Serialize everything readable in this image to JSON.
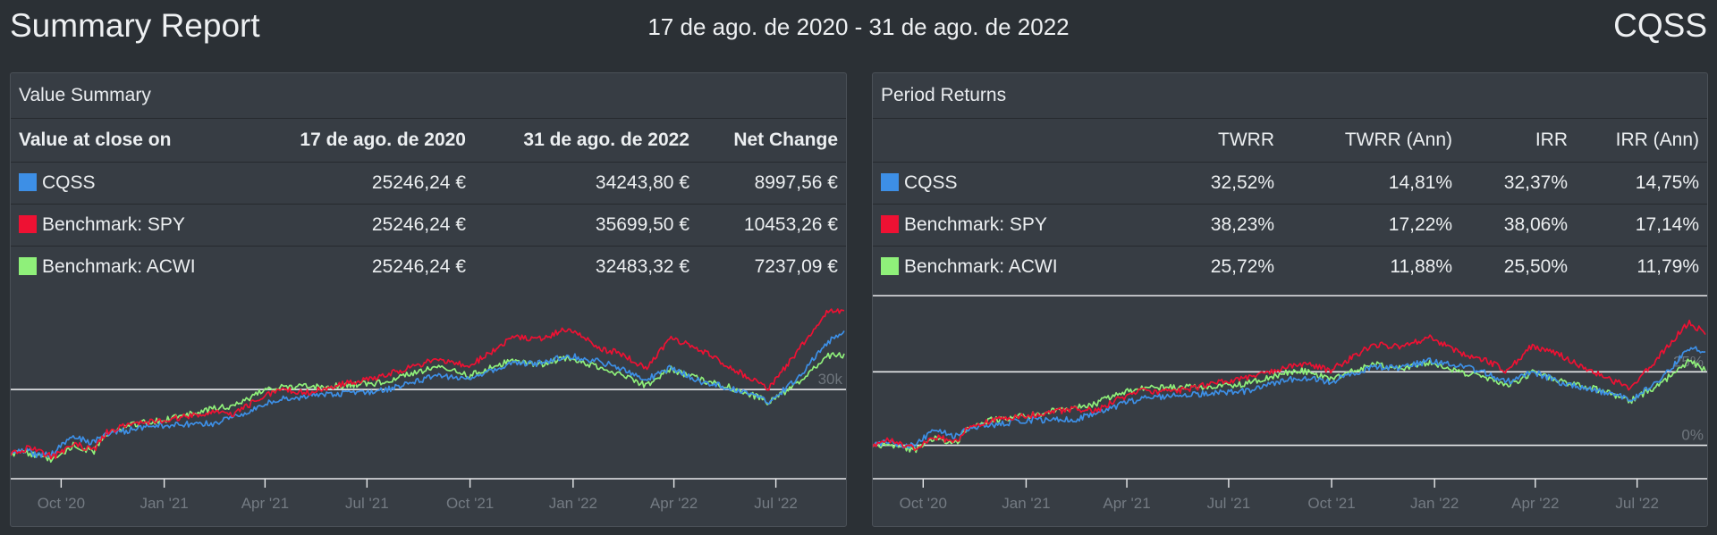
{
  "header": {
    "title": "Summary Report",
    "date_range": "17 de ago. de 2020 - 31 de ago. de 2022",
    "account": "CQSS"
  },
  "value_summary": {
    "title": "Value Summary",
    "columns": [
      "Value at close on",
      "17 de ago. de 2020",
      "31 de ago. de 2022",
      "Net Change"
    ],
    "rows": [
      {
        "name": "CQSS",
        "color": "#3d8fe6",
        "start": "25246,24 €",
        "end": "34243,80 €",
        "change": "8997,56 €"
      },
      {
        "name": "Benchmark: SPY",
        "color": "#ee1133",
        "start": "25246,24 €",
        "end": "35699,50 €",
        "change": "10453,26 €"
      },
      {
        "name": "Benchmark: ACWI",
        "color": "#8ff07a",
        "start": "25246,24 €",
        "end": "32483,32 €",
        "change": "7237,09 €"
      }
    ]
  },
  "period_returns": {
    "title": "Period Returns",
    "columns": [
      "",
      "TWRR",
      "TWRR (Ann)",
      "IRR",
      "IRR (Ann)"
    ],
    "rows": [
      {
        "name": "CQSS",
        "color": "#3d8fe6",
        "twrr": "32,52%",
        "twrr_ann": "14,81%",
        "irr": "32,37%",
        "irr_ann": "14,75%"
      },
      {
        "name": "Benchmark: SPY",
        "color": "#ee1133",
        "twrr": "38,23%",
        "twrr_ann": "17,22%",
        "irr": "38,06%",
        "irr_ann": "17,14%"
      },
      {
        "name": "Benchmark: ACWI",
        "color": "#8ff07a",
        "twrr": "25,72%",
        "twrr_ann": "11,88%",
        "irr": "25,50%",
        "irr_ann": "11,79%"
      }
    ]
  },
  "chart_data": [
    {
      "type": "line",
      "x_tick_labels": [
        "Oct '20",
        "Jan '21",
        "Apr '21",
        "Jul '21",
        "Oct '21",
        "Jan '22",
        "Apr '22",
        "Jul '22"
      ],
      "x_ticks": [
        "2020-10-01",
        "2021-01-01",
        "2021-04-01",
        "2021-07-01",
        "2021-10-01",
        "2022-01-01",
        "2022-04-01",
        "2022-07-01"
      ],
      "x_range": [
        "2020-08-17",
        "2022-08-31"
      ],
      "y_tick_labels": [
        "30k"
      ],
      "y_ticks": [
        30000
      ],
      "ylim": [
        24000,
        37000
      ],
      "grid": true,
      "series": [
        {
          "name": "CQSS",
          "color": "#3d8fe6",
          "x": [
            "2020-08-17",
            "2020-09-01",
            "2020-09-10",
            "2020-09-24",
            "2020-10-12",
            "2020-10-28",
            "2020-11-10",
            "2020-12-01",
            "2021-01-04",
            "2021-02-15",
            "2021-03-05",
            "2021-03-25",
            "2021-04-15",
            "2021-05-12",
            "2021-06-10",
            "2021-07-15",
            "2021-08-15",
            "2021-09-02",
            "2021-09-30",
            "2021-10-20",
            "2021-11-08",
            "2021-12-01",
            "2021-12-28",
            "2022-01-27",
            "2022-02-14",
            "2022-03-07",
            "2022-03-29",
            "2022-04-25",
            "2022-05-20",
            "2022-06-16",
            "2022-06-24",
            "2022-07-20",
            "2022-08-16",
            "2022-08-31"
          ],
          "y": [
            25246,
            25500,
            25100,
            25300,
            26600,
            26000,
            26700,
            27000,
            27400,
            27500,
            28000,
            28700,
            29300,
            29500,
            29700,
            29900,
            30600,
            31100,
            30700,
            31400,
            32000,
            31900,
            32500,
            32000,
            31500,
            30700,
            31600,
            30600,
            30100,
            29500,
            29000,
            30800,
            33500,
            34244
          ]
        },
        {
          "name": "Benchmark: SPY",
          "color": "#ee1133",
          "x": [
            "2020-08-17",
            "2020-09-02",
            "2020-09-24",
            "2020-10-12",
            "2020-10-30",
            "2020-11-10",
            "2020-12-01",
            "2021-01-04",
            "2021-02-15",
            "2021-03-04",
            "2021-03-25",
            "2021-04-15",
            "2021-05-12",
            "2021-06-10",
            "2021-07-15",
            "2021-08-15",
            "2021-09-02",
            "2021-09-30",
            "2021-10-20",
            "2021-11-08",
            "2021-12-01",
            "2021-12-28",
            "2022-01-27",
            "2022-02-14",
            "2022-03-07",
            "2022-03-29",
            "2022-04-25",
            "2022-05-20",
            "2022-06-16",
            "2022-06-24",
            "2022-07-20",
            "2022-08-16",
            "2022-08-31"
          ],
          "y": [
            25246,
            25700,
            25000,
            26000,
            25500,
            26800,
            27400,
            27800,
            28400,
            28200,
            29200,
            30000,
            29800,
            30400,
            31000,
            31800,
            32300,
            31700,
            32800,
            33900,
            33700,
            34500,
            33000,
            32600,
            31600,
            33800,
            32900,
            31700,
            30500,
            30000,
            32800,
            35800,
            35700
          ]
        },
        {
          "name": "Benchmark: ACWI",
          "color": "#8ff07a",
          "x": [
            "2020-08-17",
            "2020-09-02",
            "2020-09-24",
            "2020-10-12",
            "2020-10-30",
            "2020-11-10",
            "2020-12-01",
            "2021-01-04",
            "2021-02-15",
            "2021-03-04",
            "2021-03-25",
            "2021-04-15",
            "2021-05-12",
            "2021-06-10",
            "2021-07-15",
            "2021-08-15",
            "2021-09-02",
            "2021-09-30",
            "2021-10-20",
            "2021-11-08",
            "2021-12-01",
            "2021-12-28",
            "2022-01-27",
            "2022-02-14",
            "2022-03-07",
            "2022-03-29",
            "2022-04-25",
            "2022-05-20",
            "2022-06-16",
            "2022-06-24",
            "2022-07-20",
            "2022-08-16",
            "2022-08-31"
          ],
          "y": [
            25246,
            25300,
            24800,
            25900,
            25400,
            26700,
            27400,
            27800,
            28600,
            28800,
            29700,
            30200,
            30200,
            30300,
            30500,
            31300,
            31700,
            31000,
            31600,
            32200,
            31800,
            32400,
            31500,
            31000,
            30300,
            31500,
            30700,
            30200,
            29400,
            29000,
            30400,
            32500,
            32483
          ]
        }
      ]
    },
    {
      "type": "line",
      "x_tick_labels": [
        "Oct '20",
        "Jan '21",
        "Apr '21",
        "Jul '21",
        "Oct '21",
        "Jan '22",
        "Apr '22",
        "Jul '22"
      ],
      "x_ticks": [
        "2020-10-01",
        "2021-01-01",
        "2021-04-01",
        "2021-07-01",
        "2021-10-01",
        "2022-01-01",
        "2022-04-01",
        "2022-07-01"
      ],
      "x_range": [
        "2020-08-17",
        "2022-08-31"
      ],
      "y_tick_labels": [
        "0%",
        "25%"
      ],
      "y_ticks": [
        0,
        25
      ],
      "ylim": [
        -5,
        50
      ],
      "grid": true,
      "series": [
        {
          "name": "CQSS",
          "color": "#3d8fe6",
          "x": [
            "2020-08-17",
            "2020-09-01",
            "2020-09-10",
            "2020-09-24",
            "2020-10-12",
            "2020-10-28",
            "2020-11-10",
            "2020-12-01",
            "2021-01-04",
            "2021-02-15",
            "2021-03-05",
            "2021-03-25",
            "2021-04-15",
            "2021-05-12",
            "2021-06-10",
            "2021-07-15",
            "2021-08-15",
            "2021-09-02",
            "2021-09-30",
            "2021-10-20",
            "2021-11-08",
            "2021-12-01",
            "2021-12-28",
            "2022-01-27",
            "2022-02-14",
            "2022-03-07",
            "2022-03-29",
            "2022-04-25",
            "2022-05-20",
            "2022-06-16",
            "2022-06-24",
            "2022-07-20",
            "2022-08-16",
            "2022-08-31"
          ],
          "y": [
            0,
            1,
            -0.6,
            0.2,
            5.4,
            3,
            5.8,
            7,
            8.5,
            8.9,
            10.9,
            13.7,
            16.1,
            16.8,
            17.6,
            18.4,
            21.2,
            23.2,
            21.6,
            24.4,
            26.8,
            26.4,
            28.7,
            26.8,
            24.8,
            21.6,
            25.2,
            21.2,
            19.2,
            16.8,
            14.8,
            22,
            32.7,
            32.52
          ]
        },
        {
          "name": "Benchmark: SPY",
          "color": "#ee1133",
          "x": [
            "2020-08-17",
            "2020-09-02",
            "2020-09-24",
            "2020-10-12",
            "2020-10-30",
            "2020-11-10",
            "2020-12-01",
            "2021-01-04",
            "2021-02-15",
            "2021-03-04",
            "2021-03-25",
            "2021-04-15",
            "2021-05-12",
            "2021-06-10",
            "2021-07-15",
            "2021-08-15",
            "2021-09-02",
            "2021-09-30",
            "2021-10-20",
            "2021-11-08",
            "2021-12-01",
            "2021-12-28",
            "2022-01-27",
            "2022-02-14",
            "2022-03-07",
            "2022-03-29",
            "2022-04-25",
            "2022-05-20",
            "2022-06-16",
            "2022-06-24",
            "2022-07-20",
            "2022-08-16",
            "2022-08-31"
          ],
          "y": [
            0,
            1.8,
            -1,
            3,
            1,
            6.1,
            8.5,
            10.1,
            12.5,
            11.7,
            15.7,
            18.8,
            18,
            20.4,
            22.8,
            26,
            27.9,
            25.6,
            29.9,
            34.3,
            33.5,
            36.7,
            30.8,
            29.1,
            25.2,
            33.9,
            30.3,
            25.6,
            20.9,
            18.8,
            29.9,
            41.8,
            38.23
          ]
        },
        {
          "name": "Benchmark: ACWI",
          "color": "#8ff07a",
          "x": [
            "2020-08-17",
            "2020-09-02",
            "2020-09-24",
            "2020-10-12",
            "2020-10-30",
            "2020-11-10",
            "2020-12-01",
            "2021-01-04",
            "2021-02-15",
            "2021-03-04",
            "2021-03-25",
            "2021-04-15",
            "2021-05-12",
            "2021-06-10",
            "2021-07-15",
            "2021-08-15",
            "2021-09-02",
            "2021-09-30",
            "2021-10-20",
            "2021-11-08",
            "2021-12-01",
            "2021-12-28",
            "2022-01-27",
            "2022-02-14",
            "2022-03-07",
            "2022-03-29",
            "2022-04-25",
            "2022-05-20",
            "2022-06-16",
            "2022-06-24",
            "2022-07-20",
            "2022-08-16",
            "2022-08-31"
          ],
          "y": [
            0,
            0.2,
            -1.8,
            2.6,
            0.6,
            5.8,
            8.5,
            10.1,
            13.3,
            14.1,
            17.6,
            19.6,
            19.6,
            20,
            20.8,
            24,
            25.6,
            22.8,
            25.2,
            27.5,
            26,
            28.3,
            24.8,
            22.8,
            20,
            24.8,
            21.6,
            19.6,
            16.5,
            14.8,
            20.4,
            28.7,
            25.72
          ]
        }
      ]
    }
  ]
}
